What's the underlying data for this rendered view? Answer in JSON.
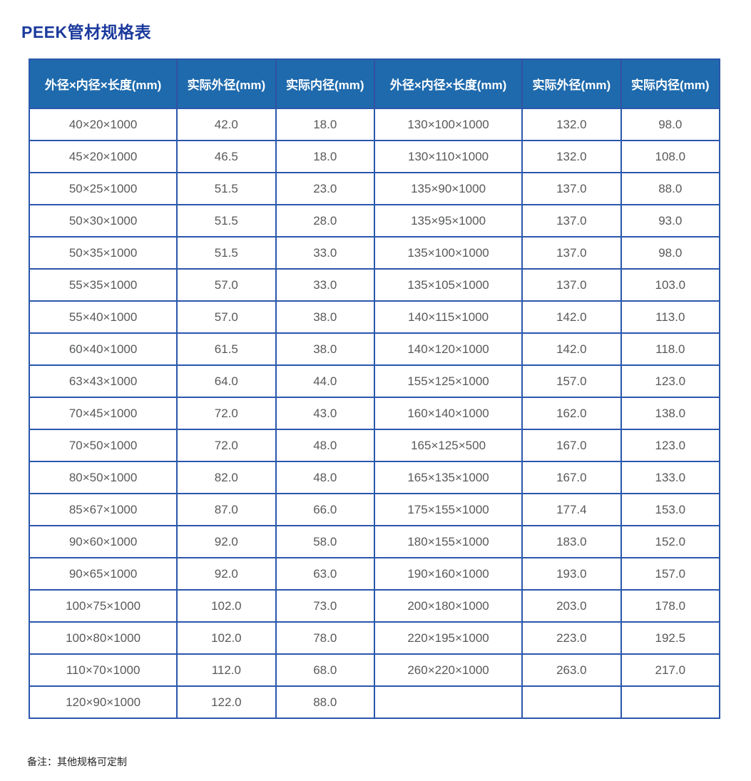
{
  "page": {
    "title": "PEEK管材规格表",
    "note": "备注：其他规格可定制"
  },
  "colors": {
    "title_text": "#1b3a9c",
    "header_bg": "#1e6aad",
    "table_border": "#2b57ac",
    "cell_text": "#58595b"
  },
  "table": {
    "headers": [
      "外径×内径×长度(mm)",
      "实际外径(mm)",
      "实际内径(mm)",
      "外径×内径×长度(mm)",
      "实际外径(mm)",
      "实际内径(mm)"
    ],
    "rows": [
      [
        "40×20×1000",
        "42.0",
        "18.0",
        "130×100×1000",
        "132.0",
        "98.0"
      ],
      [
        "45×20×1000",
        "46.5",
        "18.0",
        "130×110×1000",
        "132.0",
        "108.0"
      ],
      [
        "50×25×1000",
        "51.5",
        "23.0",
        "135×90×1000",
        "137.0",
        "88.0"
      ],
      [
        "50×30×1000",
        "51.5",
        "28.0",
        "135×95×1000",
        "137.0",
        "93.0"
      ],
      [
        "50×35×1000",
        "51.5",
        "33.0",
        "135×100×1000",
        "137.0",
        "98.0"
      ],
      [
        "55×35×1000",
        "57.0",
        "33.0",
        "135×105×1000",
        "137.0",
        "103.0"
      ],
      [
        "55×40×1000",
        "57.0",
        "38.0",
        "140×115×1000",
        "142.0",
        "113.0"
      ],
      [
        "60×40×1000",
        "61.5",
        "38.0",
        "140×120×1000",
        "142.0",
        "118.0"
      ],
      [
        "63×43×1000",
        "64.0",
        "44.0",
        "155×125×1000",
        "157.0",
        "123.0"
      ],
      [
        "70×45×1000",
        "72.0",
        "43.0",
        "160×140×1000",
        "162.0",
        "138.0"
      ],
      [
        "70×50×1000",
        "72.0",
        "48.0",
        "165×125×500",
        "167.0",
        "123.0"
      ],
      [
        "80×50×1000",
        "82.0",
        "48.0",
        "165×135×1000",
        "167.0",
        "133.0"
      ],
      [
        "85×67×1000",
        "87.0",
        "66.0",
        "175×155×1000",
        "177.4",
        "153.0"
      ],
      [
        "90×60×1000",
        "92.0",
        "58.0",
        "180×155×1000",
        "183.0",
        "152.0"
      ],
      [
        "90×65×1000",
        "92.0",
        "63.0",
        "190×160×1000",
        "193.0",
        "157.0"
      ],
      [
        "100×75×1000",
        "102.0",
        "73.0",
        "200×180×1000",
        "203.0",
        "178.0"
      ],
      [
        "100×80×1000",
        "102.0",
        "78.0",
        "220×195×1000",
        "223.0",
        "192.5"
      ],
      [
        "110×70×1000",
        "112.0",
        "68.0",
        "260×220×1000",
        "263.0",
        "217.0"
      ],
      [
        "120×90×1000",
        "122.0",
        "88.0",
        "",
        "",
        ""
      ]
    ]
  }
}
